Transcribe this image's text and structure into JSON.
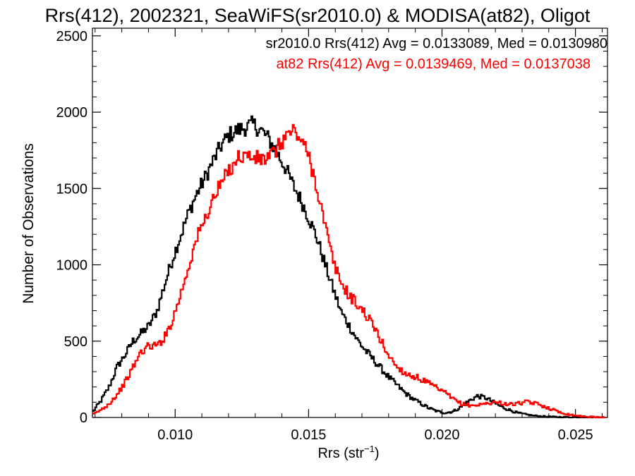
{
  "chart_data": {
    "type": "line",
    "title": "Rrs(412), 2002321, SeaWiFS(sr2010.0) & MODISA(at82), Oligot",
    "xlabel_main": "Rrs (str",
    "xlabel_sup": "−1",
    "xlabel_tail": ")",
    "ylabel": "Number of Observations",
    "xlim": [
      0.0069,
      0.0262
    ],
    "ylim": [
      0,
      2550
    ],
    "x_ticks": [
      0.01,
      0.015,
      0.02,
      0.025
    ],
    "x_tick_labels": [
      "0.010",
      "0.015",
      "0.020",
      "0.025"
    ],
    "y_ticks": [
      0,
      500,
      1000,
      1500,
      2000,
      2500
    ],
    "y_tick_labels": [
      "0",
      "500",
      "1000",
      "1500",
      "2000",
      "2500"
    ],
    "grid": false,
    "legend_position": "top-right",
    "series": [
      {
        "name": "sr2010.0 Rrs(412) Avg = 0.0133089, Med = 0.0130980",
        "color": "#000000",
        "x": [
          0.0069,
          0.0072,
          0.0075,
          0.0078,
          0.0081,
          0.0084,
          0.0087,
          0.009,
          0.0093,
          0.0096,
          0.0099,
          0.0102,
          0.0105,
          0.0108,
          0.0111,
          0.0114,
          0.0117,
          0.012,
          0.0123,
          0.0126,
          0.0129,
          0.0132,
          0.0135,
          0.0138,
          0.0141,
          0.0144,
          0.0147,
          0.015,
          0.0153,
          0.0156,
          0.0159,
          0.0162,
          0.0165,
          0.0168,
          0.0171,
          0.0174,
          0.0177,
          0.018,
          0.0183,
          0.0186,
          0.0189,
          0.0192,
          0.0195,
          0.0198,
          0.0201,
          0.0204,
          0.0207,
          0.021,
          0.0213,
          0.0216,
          0.0219,
          0.0222,
          0.0225,
          0.0228,
          0.0231,
          0.0234,
          0.0237,
          0.024,
          0.0243,
          0.0246,
          0.0249,
          0.0252,
          0.0255,
          0.0258,
          0.0261
        ],
        "y": [
          40,
          110,
          200,
          330,
          410,
          500,
          550,
          600,
          700,
          880,
          1050,
          1200,
          1350,
          1470,
          1570,
          1680,
          1780,
          1850,
          1880,
          1900,
          1920,
          1880,
          1820,
          1730,
          1640,
          1520,
          1420,
          1300,
          1170,
          1000,
          840,
          690,
          600,
          510,
          440,
          380,
          320,
          260,
          210,
          160,
          120,
          90,
          60,
          40,
          30,
          40,
          70,
          110,
          140,
          130,
          100,
          70,
          50,
          30,
          20,
          12,
          8,
          5,
          3,
          2,
          1,
          0,
          0,
          0,
          0
        ]
      },
      {
        "name": "at82 Rrs(412) Avg = 0.0139469, Med = 0.0137038",
        "color": "#ff0000",
        "x": [
          0.0069,
          0.0072,
          0.0075,
          0.0078,
          0.0081,
          0.0084,
          0.0087,
          0.009,
          0.0093,
          0.0096,
          0.0099,
          0.0102,
          0.0105,
          0.0108,
          0.0111,
          0.0114,
          0.0117,
          0.012,
          0.0123,
          0.0126,
          0.0129,
          0.0132,
          0.0135,
          0.0138,
          0.0141,
          0.0144,
          0.0147,
          0.015,
          0.0153,
          0.0156,
          0.0159,
          0.0162,
          0.0165,
          0.0168,
          0.0171,
          0.0174,
          0.0177,
          0.018,
          0.0183,
          0.0186,
          0.0189,
          0.0192,
          0.0195,
          0.0198,
          0.0201,
          0.0204,
          0.0207,
          0.021,
          0.0213,
          0.0216,
          0.0219,
          0.0222,
          0.0225,
          0.0228,
          0.0231,
          0.0234,
          0.0237,
          0.024,
          0.0243,
          0.0246,
          0.0249,
          0.0252,
          0.0255,
          0.0258,
          0.0261
        ],
        "y": [
          20,
          50,
          90,
          150,
          230,
          330,
          430,
          470,
          470,
          530,
          650,
          820,
          1000,
          1180,
          1300,
          1430,
          1530,
          1620,
          1700,
          1720,
          1700,
          1690,
          1700,
          1760,
          1840,
          1880,
          1820,
          1700,
          1500,
          1250,
          1020,
          880,
          800,
          740,
          680,
          600,
          500,
          400,
          330,
          290,
          270,
          250,
          220,
          190,
          160,
          120,
          90,
          80,
          80,
          90,
          100,
          95,
          85,
          90,
          100,
          95,
          80,
          60,
          40,
          25,
          15,
          8,
          4,
          2,
          0
        ]
      }
    ]
  }
}
